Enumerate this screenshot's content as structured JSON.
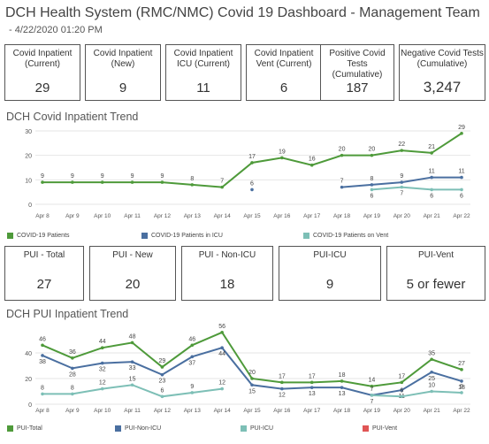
{
  "header": {
    "title": "DCH Health System (RMC/NMC) Covid 19 Dashboard - Management Team",
    "subtitle": "- 4/22/2020 01:20 PM"
  },
  "colors": {
    "green": "#4e9a3a",
    "blue": "#4a6fa0",
    "teal": "#7dbfb6",
    "red": "#e05555",
    "grid": "#e6e6e6",
    "border": "#555555"
  },
  "cards_top": [
    {
      "label": "Covid Inpatient\n(Current)",
      "value": "29"
    },
    {
      "label": "Covid Inpatient\n(New)",
      "value": "9"
    },
    {
      "label": "Covid Inpatient\nICU (Current)",
      "value": "11"
    },
    {
      "label": "Covid Inpatient\nVent (Current)",
      "value": "6"
    },
    {
      "label": "Positive Covid\nTests (Cumulative)",
      "value": "187"
    },
    {
      "label": "Negative Covid Tests\n(Cumulative)",
      "value": "3,247"
    }
  ],
  "cards_pui": [
    {
      "label": "PUI - Total",
      "value": "27"
    },
    {
      "label": "PUI - New",
      "value": "20"
    },
    {
      "label": "PUI - Non-ICU",
      "value": "18"
    },
    {
      "label": "PUI-ICU",
      "value": "9"
    },
    {
      "label": "PUI-Vent",
      "value": "5 or fewer"
    }
  ],
  "sections": {
    "covid_trend_title": "DCH Covid Inpatient Trend",
    "pui_trend_title": "DCH PUI Inpatient Trend"
  },
  "chart_data": [
    {
      "type": "line",
      "title": "DCH Covid Inpatient Trend",
      "categories": [
        "Apr 8",
        "Apr 9",
        "Apr 10",
        "Apr 11",
        "Apr 12",
        "Apr 13",
        "Apr 14",
        "Apr 15",
        "Apr 16",
        "Apr 17",
        "Apr 18",
        "Apr 19",
        "Apr 20",
        "Apr 21",
        "Apr 22"
      ],
      "ylim": [
        0,
        30
      ],
      "yticks": [
        0,
        10,
        20,
        30
      ],
      "grid": true,
      "legend_position": "bottom",
      "series": [
        {
          "name": "COVID-19 Patients",
          "color": "#4e9a3a",
          "values": [
            9,
            9,
            9,
            9,
            9,
            8,
            7,
            17,
            19,
            16,
            20,
            20,
            22,
            21,
            29
          ]
        },
        {
          "name": "COVID-19 Patients in ICU",
          "color": "#4a6fa0",
          "values": [
            null,
            null,
            null,
            null,
            null,
            null,
            null,
            6,
            null,
            null,
            7,
            8,
            9,
            11,
            11
          ]
        },
        {
          "name": "COVID-19 Patients on Vent",
          "color": "#7dbfb6",
          "values": [
            null,
            null,
            null,
            null,
            null,
            null,
            null,
            null,
            null,
            null,
            null,
            6,
            7,
            6,
            6
          ]
        }
      ]
    },
    {
      "type": "line",
      "title": "DCH PUI Inpatient Trend",
      "categories": [
        "Apr 8",
        "Apr 9",
        "Apr 10",
        "Apr 11",
        "Apr 12",
        "Apr 13",
        "Apr 14",
        "Apr 15",
        "Apr 16",
        "Apr 17",
        "Apr 18",
        "Apr 19",
        "Apr 20",
        "Apr 21",
        "Apr 22"
      ],
      "ylim": [
        0,
        60
      ],
      "yticks": [
        0,
        20,
        40
      ],
      "grid": true,
      "legend_position": "bottom",
      "series": [
        {
          "name": "PUI-Total",
          "color": "#4e9a3a",
          "values": [
            46,
            36,
            44,
            48,
            29,
            46,
            56,
            20,
            17,
            17,
            18,
            14,
            17,
            35,
            27
          ]
        },
        {
          "name": "PUI-Non-ICU",
          "color": "#4a6fa0",
          "values": [
            38,
            28,
            32,
            33,
            23,
            37,
            44,
            15,
            12,
            13,
            13,
            7,
            11,
            25,
            18
          ]
        },
        {
          "name": "PUI-ICU",
          "color": "#7dbfb6",
          "values": [
            8,
            8,
            12,
            15,
            6,
            9,
            12,
            null,
            null,
            null,
            null,
            7,
            6,
            10,
            9
          ]
        },
        {
          "name": "PUI-Vent",
          "color": "#e05555",
          "values": [
            null,
            null,
            null,
            null,
            null,
            null,
            null,
            null,
            null,
            null,
            null,
            null,
            null,
            null,
            null
          ]
        }
      ]
    }
  ]
}
